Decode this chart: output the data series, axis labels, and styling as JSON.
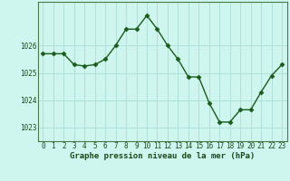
{
  "x": [
    0,
    1,
    2,
    3,
    4,
    5,
    6,
    7,
    8,
    9,
    10,
    11,
    12,
    13,
    14,
    15,
    16,
    17,
    18,
    19,
    20,
    21,
    22,
    23
  ],
  "y": [
    1025.7,
    1025.7,
    1025.7,
    1025.3,
    1025.25,
    1025.3,
    1025.5,
    1026.0,
    1026.6,
    1026.6,
    1027.1,
    1026.6,
    1026.0,
    1025.5,
    1024.85,
    1024.85,
    1023.9,
    1023.2,
    1023.2,
    1023.65,
    1023.65,
    1024.3,
    1024.9,
    1025.3
  ],
  "line_color": "#1a5c1a",
  "marker": "D",
  "markersize": 2.5,
  "linewidth": 1.0,
  "bg_color": "#cef5ee",
  "grid_color": "#aaddd5",
  "border_color": "#4a7a4a",
  "xlabel": "Graphe pression niveau de la mer (hPa)",
  "xlabel_color": "#1a4a1a",
  "xlabel_fontsize": 6.5,
  "tick_fontsize": 5.5,
  "yticks": [
    1023,
    1024,
    1025,
    1026
  ],
  "ylim": [
    1022.5,
    1027.6
  ],
  "xlim": [
    -0.5,
    23.5
  ],
  "xticks": [
    0,
    1,
    2,
    3,
    4,
    5,
    6,
    7,
    8,
    9,
    10,
    11,
    12,
    13,
    14,
    15,
    16,
    17,
    18,
    19,
    20,
    21,
    22,
    23
  ]
}
